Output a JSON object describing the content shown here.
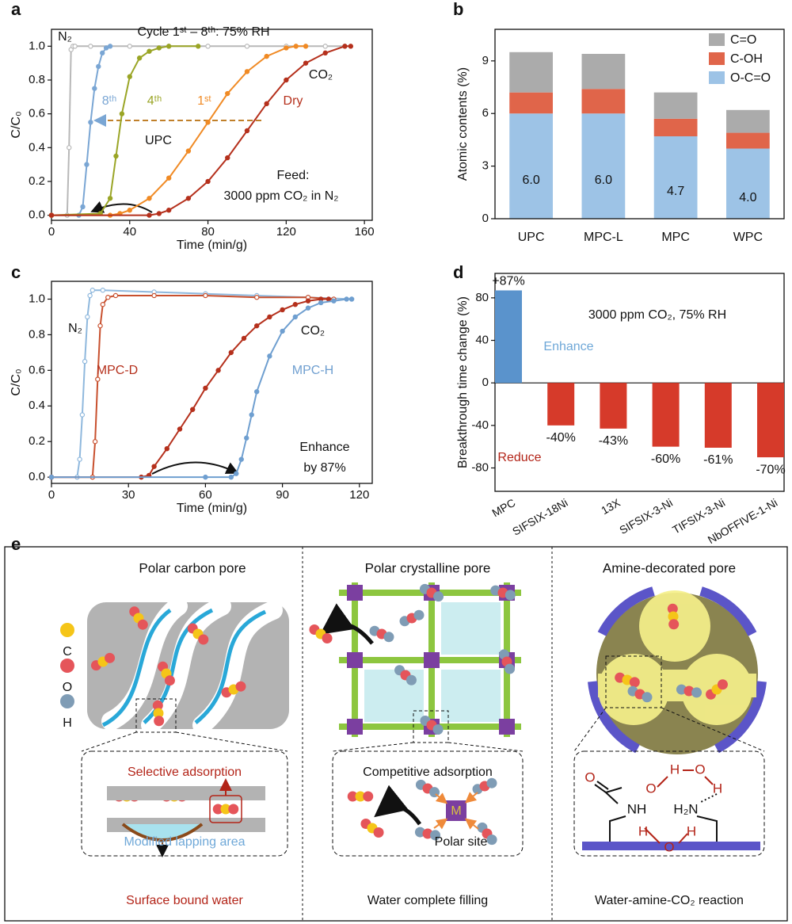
{
  "chart_data": [
    {
      "panel": "a",
      "type": "line",
      "xlabel": "Time (min/g)",
      "ylabel": "C/C₀",
      "annotations": [
        "Cycle 1ˢᵗ – 8ᵗʰ: 75% RH",
        "UPC",
        "CO₂",
        "Feed:",
        "3000 ppm CO₂ in N₂"
      ],
      "xlim": [
        0,
        164
      ],
      "xticks": [
        0,
        40,
        80,
        120,
        160
      ],
      "ylim": [
        -0.03,
        1.1
      ],
      "yticks": [
        {
          "value": 0,
          "label": "0.0"
        },
        0.2,
        0.4,
        0.6,
        0.8,
        {
          "value": 1,
          "label": "1.0"
        }
      ],
      "series": [
        {
          "name": "N₂",
          "color": "#b8b8b8",
          "marker": "open",
          "x": [
            0,
            8,
            9,
            10,
            11,
            12,
            20,
            40,
            60,
            80,
            100,
            120,
            140,
            150
          ],
          "values": [
            0,
            0,
            0.4,
            0.98,
            1,
            1,
            1,
            1,
            1,
            1,
            1,
            1,
            1,
            1
          ]
        },
        {
          "name": "8ᵗʰ",
          "color": "#7aa6d4",
          "marker": "filled",
          "x": [
            0,
            14,
            16,
            18,
            20,
            22,
            24,
            26,
            28,
            30
          ],
          "values": [
            0,
            0,
            0.05,
            0.3,
            0.55,
            0.75,
            0.88,
            0.96,
            0.99,
            1
          ]
        },
        {
          "name": "4ᵗʰ",
          "color": "#9aa526",
          "marker": "filled",
          "x": [
            0,
            25,
            30,
            33,
            36,
            40,
            45,
            50,
            55,
            60,
            75
          ],
          "values": [
            0,
            0.01,
            0.1,
            0.35,
            0.6,
            0.82,
            0.93,
            0.97,
            0.99,
            1,
            1
          ]
        },
        {
          "name": "1ˢᵗ",
          "color": "#f08a24",
          "marker": "filled",
          "x": [
            0,
            30,
            35,
            40,
            50,
            60,
            70,
            80,
            90,
            100,
            110,
            120,
            125,
            130
          ],
          "values": [
            0,
            0,
            0.01,
            0.03,
            0.1,
            0.22,
            0.38,
            0.55,
            0.72,
            0.85,
            0.94,
            0.99,
            1,
            1
          ]
        },
        {
          "name": "Dry",
          "color": "#b5301c",
          "marker": "filled",
          "x": [
            0,
            50,
            55,
            60,
            70,
            80,
            90,
            100,
            110,
            120,
            130,
            140,
            150,
            153
          ],
          "values": [
            0,
            0,
            0.01,
            0.03,
            0.1,
            0.2,
            0.34,
            0.5,
            0.66,
            0.8,
            0.9,
            0.96,
            1,
            1
          ]
        }
      ]
    },
    {
      "panel": "b",
      "type": "stacked_bar",
      "ylabel": "Atomic contents (%)",
      "legend": "upper right",
      "categories": [
        "UPC",
        "MPC-L",
        "MPC",
        "WPC"
      ],
      "ylim": [
        0,
        10.8
      ],
      "yticks": [
        0,
        3,
        6,
        9
      ],
      "series": [
        {
          "name": "O-C=O",
          "color": "#9dc3e6",
          "values": [
            6.0,
            6.0,
            4.7,
            4.0
          ],
          "value_labels": [
            "6.0",
            "6.0",
            "4.7",
            "4.0"
          ]
        },
        {
          "name": "C-OH",
          "color": "#e0654a",
          "values": [
            1.2,
            1.4,
            1.0,
            0.9
          ]
        },
        {
          "name": "C=O",
          "color": "#ababab",
          "values": [
            2.3,
            2.0,
            1.5,
            1.3
          ]
        }
      ]
    },
    {
      "panel": "c",
      "type": "line",
      "xlabel": "Time (min/g)",
      "ylabel": "C/C₀",
      "annotations": [
        "CO₂",
        "Enhance",
        "by 87%"
      ],
      "xlim": [
        0,
        125
      ],
      "xticks": [
        0,
        30,
        60,
        90,
        120
      ],
      "ylim": [
        -0.035,
        1.1
      ],
      "yticks": [
        {
          "value": 0,
          "label": "0.0"
        },
        0.2,
        0.4,
        0.6,
        0.8,
        {
          "value": 1,
          "label": "1.0"
        }
      ],
      "series": [
        {
          "name": "N₂",
          "color": "#8fb8dd",
          "marker": "open",
          "x": [
            0,
            10,
            11,
            12,
            13,
            14,
            15,
            16,
            20,
            40,
            60,
            80,
            100,
            117
          ],
          "values": [
            0,
            0,
            0.1,
            0.35,
            0.65,
            0.9,
            1.02,
            1.05,
            1.05,
            1.04,
            1.03,
            1.02,
            1.01,
            1.0
          ]
        },
        {
          "color": "#c8502e",
          "marker": "open",
          "x": [
            0,
            16,
            17,
            18,
            19,
            20,
            22,
            25,
            40,
            60,
            80,
            100,
            110
          ],
          "values": [
            0,
            0,
            0.2,
            0.55,
            0.85,
            0.97,
            1.01,
            1.02,
            1.02,
            1.02,
            1.01,
            1.01,
            1.0
          ]
        },
        {
          "name": "MPC-D",
          "color": "#b5301c",
          "marker": "filled",
          "x": [
            0,
            35,
            38,
            40,
            45,
            50,
            55,
            60,
            65,
            70,
            75,
            80,
            85,
            90,
            95,
            100,
            105,
            108
          ],
          "values": [
            0,
            0,
            0.01,
            0.06,
            0.16,
            0.27,
            0.38,
            0.5,
            0.6,
            0.7,
            0.78,
            0.85,
            0.9,
            0.94,
            0.97,
            0.99,
            1.0,
            1.0
          ]
        },
        {
          "name": "MPC-H",
          "color": "#6f9fd0",
          "marker": "filled",
          "x": [
            0,
            60,
            70,
            72,
            74,
            76,
            78,
            80,
            85,
            90,
            95,
            100,
            105,
            110,
            115,
            117
          ],
          "values": [
            0,
            0,
            0,
            0.02,
            0.1,
            0.22,
            0.35,
            0.48,
            0.68,
            0.82,
            0.9,
            0.95,
            0.98,
            0.99,
            1.0,
            1.0
          ]
        }
      ]
    },
    {
      "panel": "d",
      "type": "bar",
      "ylabel": "Breakthrough time change (%)",
      "annotations": [
        "3000 ppm CO₂, 75% RH",
        "Enhance",
        "Reduce"
      ],
      "categories": [
        "MPC",
        "SIFSIX-18Ni",
        "13X",
        "SIFSIX-3-Ni",
        "TIFSIX-3-Ni",
        "NbOFFIVE-1-Ni"
      ],
      "values": [
        87,
        -40,
        -43,
        -60,
        -61,
        -70
      ],
      "value_labels": [
        "+87%",
        "-40%",
        "-43%",
        "-60%",
        "-61%",
        "-70%"
      ],
      "colors": [
        "#5a93cc",
        "#d63a2a",
        "#d63a2a",
        "#d63a2a",
        "#d63a2a",
        "#d63a2a"
      ],
      "ylim": [
        -102,
        103
      ],
      "yticks": [
        -80,
        -40,
        0,
        40,
        80
      ]
    }
  ],
  "diagram": {
    "panel": "e",
    "legend": [
      "C",
      "O",
      "H"
    ],
    "columns": [
      {
        "title": "Polar carbon pore",
        "inset": [
          "Selective adsorption",
          "Modified lapping area"
        ],
        "caption": "Surface bound water"
      },
      {
        "title": "Polar crystalline pore",
        "inset": [
          "Competitive adsorption",
          "M",
          "Polar site"
        ],
        "caption": "Water complete filling"
      },
      {
        "title": "Amine-decorated pore",
        "inset": [
          "O",
          "O",
          "H",
          "O",
          "H",
          "NH",
          "H₂N",
          "H",
          "O",
          "H"
        ],
        "caption": "Water-amine-CO₂ reaction"
      }
    ]
  }
}
